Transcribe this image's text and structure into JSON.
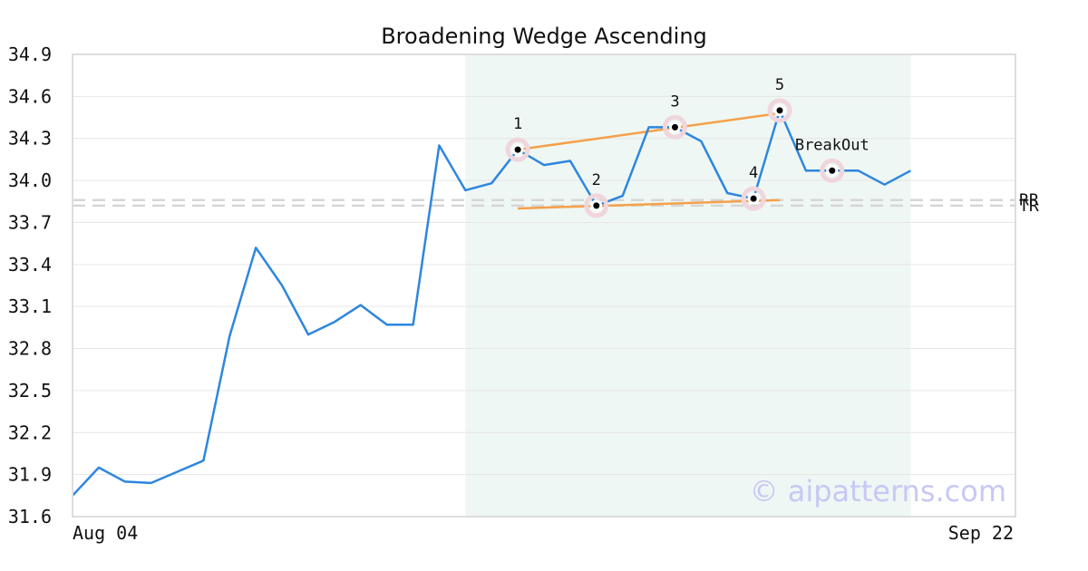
{
  "chart_data": {
    "type": "line",
    "title": "Broadening Wedge Ascending",
    "xlabel": "",
    "ylabel": "",
    "ylim": [
      31.6,
      34.9
    ],
    "y_ticks": [
      "31.6",
      "31.9",
      "32.2",
      "32.5",
      "32.8",
      "33.1",
      "33.4",
      "33.7",
      "34.0",
      "34.3",
      "34.6",
      "34.9"
    ],
    "x_tick_labels": [
      {
        "index": 0,
        "label": "Aug 04"
      },
      {
        "index": 36,
        "label": "Sep 22"
      }
    ],
    "grid": true,
    "series": [
      {
        "color": "#2e86de",
        "values": [
          31.75,
          31.95,
          31.85,
          31.84,
          31.92,
          32.0,
          32.89,
          33.52,
          33.25,
          32.9,
          32.99,
          33.11,
          32.97,
          32.97,
          34.25,
          33.93,
          33.98,
          34.22,
          34.11,
          34.14,
          33.82,
          33.89,
          34.38,
          34.38,
          34.28,
          33.91,
          33.87,
          34.5,
          34.07,
          34.07,
          34.07,
          33.97,
          34.07
        ]
      }
    ],
    "highlight_range": {
      "start_index": 15,
      "end_index": 32,
      "color": "#eef7f3"
    },
    "pattern_points": [
      {
        "label": "1",
        "index": 17,
        "value": 34.22
      },
      {
        "label": "2",
        "index": 20,
        "value": 33.82
      },
      {
        "label": "3",
        "index": 23,
        "value": 34.38
      },
      {
        "label": "4",
        "index": 26,
        "value": 33.87
      },
      {
        "label": "5",
        "index": 27,
        "value": 34.5
      },
      {
        "label": "BreakOut",
        "index": 29,
        "value": 34.07
      }
    ],
    "trend_lines": [
      {
        "from": {
          "index": 17,
          "value": 34.22
        },
        "to": {
          "index": 27,
          "value": 34.48
        },
        "color": "#f5a04a"
      },
      {
        "from": {
          "index": 17,
          "value": 33.8
        },
        "to": {
          "index": 27,
          "value": 33.86
        },
        "color": "#f5a04a"
      }
    ],
    "levels": [
      {
        "label": "RR",
        "value": 33.86
      },
      {
        "label": "TR",
        "value": 33.82
      }
    ]
  },
  "watermark": "© aipatterns.com"
}
